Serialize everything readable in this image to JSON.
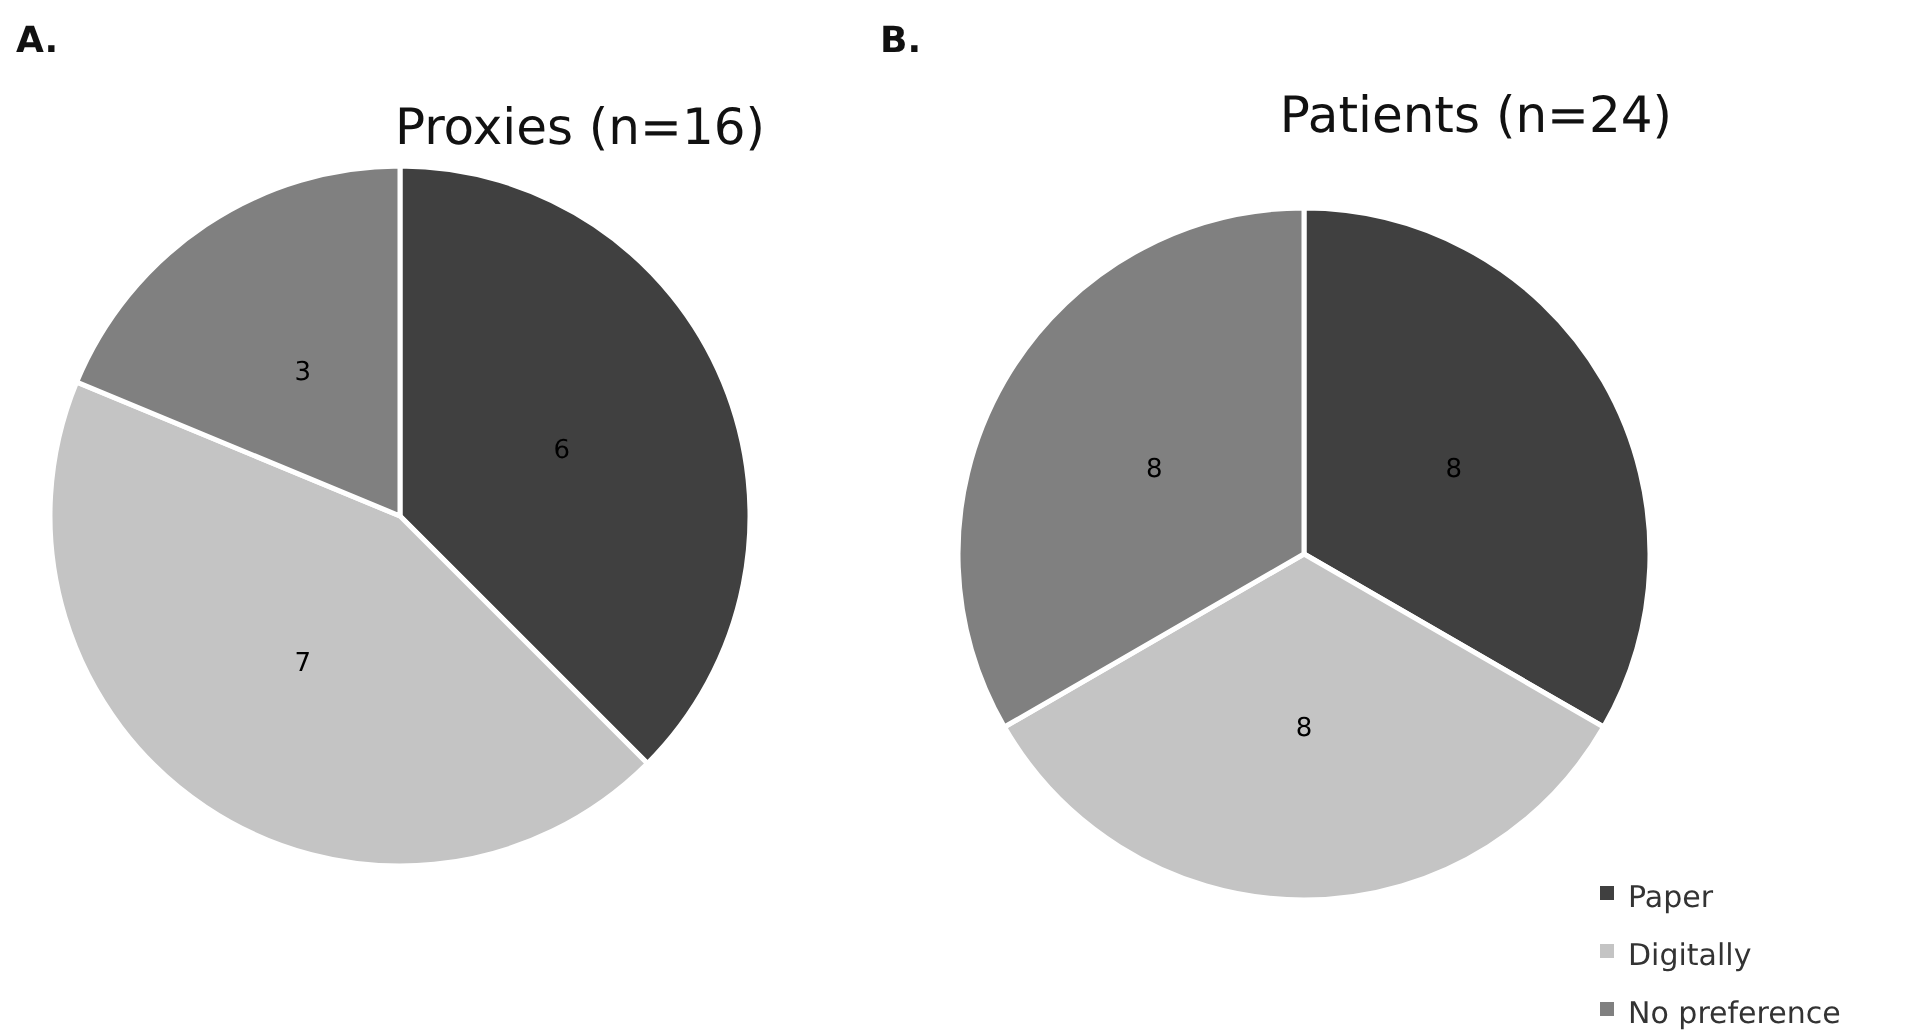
{
  "chart_data": [
    {
      "type": "pie",
      "title": "Proxies (n=16)",
      "annotations": [
        "A."
      ],
      "categories": [
        null,
        null,
        null
      ],
      "values": [
        6,
        7,
        3
      ],
      "colors": [
        "#404040",
        "#c4c4c4",
        "#808080"
      ],
      "data_labels": true,
      "legend": false
    },
    {
      "type": "pie",
      "title": "Patients (n=24)",
      "annotations": [
        "B."
      ],
      "categories": [
        "Paper",
        "Digitally",
        "No preference"
      ],
      "values": [
        8,
        8,
        8
      ],
      "colors": [
        "#404040",
        "#c4c4c4",
        "#808080"
      ],
      "data_labels": true,
      "legend": "bottom right"
    }
  ]
}
